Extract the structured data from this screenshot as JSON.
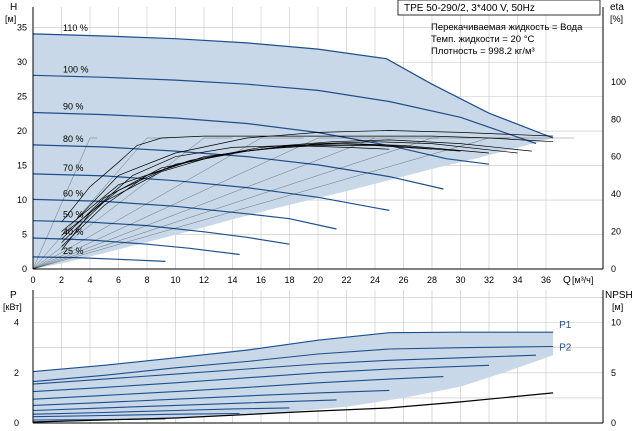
{
  "chart_data": [
    {
      "type": "line",
      "title": "TPE 50-290/2, 3*400 V, 50Hz",
      "info_lines": [
        "Перекачиваемая жидкость = Вода",
        "Темп. жидкости = 20 °C",
        "Плотность = 998.2 кг/м³"
      ],
      "ylabel": "H",
      "yunit": "[м]",
      "y2label": "eta",
      "y2unit": "[%]",
      "xlabel": "Q",
      "xunit": "[м³/ч]",
      "xlim": [
        0,
        40
      ],
      "xticks": [
        0,
        2,
        4,
        6,
        8,
        10,
        12,
        14,
        16,
        18,
        20,
        22,
        24,
        26,
        28,
        30,
        32,
        34,
        36
      ],
      "ylim": [
        0,
        38
      ],
      "yticks": [
        0,
        5,
        10,
        15,
        20,
        25,
        30,
        35
      ],
      "y2lim": [
        0,
        140
      ],
      "y2ticks": [
        0,
        20,
        40,
        60,
        80,
        100
      ],
      "grid": true,
      "envelope": [
        [
          0,
          34.1
        ],
        [
          5,
          33.8
        ],
        [
          10,
          33.4
        ],
        [
          15,
          32.8
        ],
        [
          20,
          31.9
        ],
        [
          24.8,
          30.5
        ],
        [
          28,
          26.8
        ],
        [
          32,
          22.6
        ],
        [
          36.5,
          19.0
        ],
        [
          34,
          17.6
        ],
        [
          31,
          16.0
        ],
        [
          28,
          14.5
        ],
        [
          25,
          12.9
        ],
        [
          22,
          11.3
        ],
        [
          20,
          10.3
        ],
        [
          17,
          8.8
        ],
        [
          14,
          7.2
        ],
        [
          11,
          5.5
        ],
        [
          8,
          3.9
        ],
        [
          5,
          2.3
        ],
        [
          2,
          0.8
        ],
        [
          0,
          0
        ]
      ],
      "speed_curves": [
        {
          "label": "110 %",
          "points": [
            [
              0,
              34.1
            ],
            [
              5,
              33.8
            ],
            [
              10,
              33.4
            ],
            [
              15,
              32.8
            ],
            [
              20,
              31.9
            ],
            [
              24.8,
              30.5
            ],
            [
              28,
              26.8
            ],
            [
              32,
              22.6
            ],
            [
              36.5,
              19.0
            ]
          ]
        },
        {
          "label": "100 %",
          "points": [
            [
              0,
              28.1
            ],
            [
              5,
              27.8
            ],
            [
              10,
              27.4
            ],
            [
              15,
              26.8
            ],
            [
              20,
              25.9
            ],
            [
              25,
              24.3
            ],
            [
              30,
              22.0
            ],
            [
              35.3,
              18.2
            ]
          ]
        },
        {
          "label": "90 %",
          "points": [
            [
              0,
              22.7
            ],
            [
              5,
              22.4
            ],
            [
              10,
              21.9
            ],
            [
              15,
              21.1
            ],
            [
              20,
              19.8
            ],
            [
              25,
              17.9
            ],
            [
              29,
              16.0
            ],
            [
              32,
              15.2
            ]
          ]
        },
        {
          "label": "80 %",
          "points": [
            [
              0,
              18.0
            ],
            [
              5,
              17.7
            ],
            [
              10,
              17.1
            ],
            [
              15,
              16.3
            ],
            [
              20,
              15.1
            ],
            [
              25,
              13.4
            ],
            [
              28.8,
              11.6
            ]
          ]
        },
        {
          "label": "70 %",
          "points": [
            [
              0,
              13.8
            ],
            [
              5,
              13.5
            ],
            [
              10,
              12.8
            ],
            [
              15,
              11.8
            ],
            [
              20,
              10.4
            ],
            [
              25,
              8.5
            ]
          ]
        },
        {
          "label": "60 %",
          "points": [
            [
              0,
              10.1
            ],
            [
              5,
              9.8
            ],
            [
              10,
              9.1
            ],
            [
              15,
              8.0
            ],
            [
              18,
              7.3
            ],
            [
              21.3,
              5.8
            ]
          ]
        },
        {
          "label": "50 %",
          "points": [
            [
              0,
              7.0
            ],
            [
              4,
              6.8
            ],
            [
              8,
              6.3
            ],
            [
              12,
              5.4
            ],
            [
              15,
              4.6
            ],
            [
              18,
              3.6
            ]
          ]
        },
        {
          "label": "40 %",
          "points": [
            [
              0,
              4.5
            ],
            [
              4,
              4.2
            ],
            [
              8,
              3.6
            ],
            [
              11,
              3.0
            ],
            [
              14.5,
              2.1
            ]
          ]
        },
        {
          "label": "25 %",
          "points": [
            [
              0,
              1.75
            ],
            [
              3,
              1.65
            ],
            [
              6,
              1.4
            ],
            [
              9.3,
              1.1
            ]
          ]
        }
      ],
      "efficiency_curves": [
        {
          "points": [
            [
              2,
              10
            ],
            [
              4,
              30
            ],
            [
              7,
              50
            ],
            [
              10,
              60
            ],
            [
              14,
              65
            ],
            [
              18,
              66
            ],
            [
              22,
              65
            ],
            [
              25,
              64
            ]
          ]
        },
        {
          "points": [
            [
              2,
              12
            ],
            [
              5,
              34
            ],
            [
              8,
              50
            ],
            [
              12,
              60
            ],
            [
              16,
              64
            ],
            [
              20,
              66
            ],
            [
              24,
              66
            ],
            [
              28,
              64
            ]
          ]
        },
        {
          "points": [
            [
              2,
              14
            ],
            [
              5,
              36
            ],
            [
              9,
              52
            ],
            [
              13,
              61
            ],
            [
              17,
              65
            ],
            [
              21,
              67
            ],
            [
              25,
              66
            ],
            [
              30,
              63
            ]
          ]
        },
        {
          "points": [
            [
              2,
              16
            ],
            [
              5,
              38
            ],
            [
              9,
              54
            ],
            [
              14,
              62
            ],
            [
              18,
              66
            ],
            [
              22,
              67
            ],
            [
              26,
              66
            ],
            [
              32,
              62
            ]
          ]
        },
        {
          "points": [
            [
              2,
              18
            ],
            [
              6,
              42
            ],
            [
              10,
              56
            ],
            [
              15,
              63
            ],
            [
              20,
              67
            ],
            [
              24,
              68
            ],
            [
              28,
              67
            ],
            [
              34,
              62
            ]
          ]
        },
        {
          "points": [
            [
              2,
              20
            ],
            [
              6,
              45
            ],
            [
              11,
              58
            ],
            [
              16,
              65
            ],
            [
              21,
              68
            ],
            [
              25,
              69
            ],
            [
              30,
              67
            ],
            [
              35,
              63
            ]
          ]
        },
        {
          "points": [
            [
              3,
              26
            ],
            [
              6,
              50
            ],
            [
              10,
              62
            ],
            [
              15,
              70
            ],
            [
              20,
              73
            ],
            [
              25,
              74
            ],
            [
              30,
              73
            ],
            [
              36.5,
              71
            ]
          ]
        },
        {
          "points": [
            [
              2,
              25
            ],
            [
              4,
              44
            ],
            [
              6,
              57
            ],
            [
              7.3,
              66
            ],
            [
              9,
              70
            ],
            [
              12,
              71
            ],
            [
              16,
              71
            ],
            [
              20,
              71
            ],
            [
              24,
              71
            ],
            [
              28,
              71
            ],
            [
              32,
              70
            ],
            [
              36.5,
              68
            ]
          ]
        }
      ]
    },
    {
      "type": "line",
      "ylabel": "P",
      "yunit": "[кВт]",
      "y2label": "NPSH",
      "y2unit": "[м]",
      "xlim": [
        0,
        40
      ],
      "ylim": [
        0,
        5.3
      ],
      "yticks": [
        0,
        2,
        4
      ],
      "y2lim": [
        0,
        13.25
      ],
      "y2ticks": [
        0,
        5,
        10
      ],
      "grid": true,
      "envelope": [
        [
          0,
          2.05
        ],
        [
          10,
          2.6
        ],
        [
          20,
          3.3
        ],
        [
          25,
          3.6
        ],
        [
          36.5,
          3.62
        ],
        [
          36.5,
          2.7
        ],
        [
          33,
          2.0
        ],
        [
          30,
          1.45
        ],
        [
          26,
          1.0
        ],
        [
          22,
          0.65
        ],
        [
          17,
          0.4
        ],
        [
          12,
          0.24
        ],
        [
          7,
          0.15
        ],
        [
          3,
          0.09
        ],
        [
          0,
          0.07
        ]
      ],
      "power_curves": [
        {
          "label": "P1",
          "points": [
            [
              0,
              2.05
            ],
            [
              5,
              2.3
            ],
            [
              10,
              2.6
            ],
            [
              15,
              2.9
            ],
            [
              20,
              3.3
            ],
            [
              25,
              3.6
            ],
            [
              30,
              3.62
            ],
            [
              36.5,
              3.62
            ]
          ]
        },
        {
          "label": "P2",
          "points": [
            [
              0,
              1.65
            ],
            [
              5,
              1.9
            ],
            [
              10,
              2.2
            ],
            [
              15,
              2.45
            ],
            [
              20,
              2.75
            ],
            [
              25,
              2.95
            ],
            [
              30,
              3.0
            ],
            [
              36.5,
              3.05
            ]
          ]
        },
        {
          "points": [
            [
              0,
              1.55
            ],
            [
              5,
              1.75
            ],
            [
              10,
              1.95
            ],
            [
              15,
              2.15
            ],
            [
              20,
              2.35
            ],
            [
              25,
              2.5
            ],
            [
              30,
              2.6
            ],
            [
              35.3,
              2.7
            ]
          ]
        },
        {
          "points": [
            [
              0,
              1.25
            ],
            [
              5,
              1.42
            ],
            [
              10,
              1.6
            ],
            [
              15,
              1.8
            ],
            [
              20,
              2.0
            ],
            [
              25,
              2.15
            ],
            [
              32,
              2.3
            ]
          ]
        },
        {
          "points": [
            [
              0,
              0.95
            ],
            [
              5,
              1.1
            ],
            [
              10,
              1.25
            ],
            [
              15,
              1.42
            ],
            [
              20,
              1.6
            ],
            [
              25,
              1.75
            ],
            [
              28.8,
              1.85
            ]
          ]
        },
        {
          "points": [
            [
              0,
              0.7
            ],
            [
              5,
              0.82
            ],
            [
              10,
              0.95
            ],
            [
              15,
              1.08
            ],
            [
              20,
              1.2
            ],
            [
              25,
              1.3
            ]
          ]
        },
        {
          "points": [
            [
              0,
              0.5
            ],
            [
              5,
              0.6
            ],
            [
              10,
              0.7
            ],
            [
              15,
              0.8
            ],
            [
              21.3,
              0.92
            ]
          ]
        },
        {
          "points": [
            [
              0,
              0.35
            ],
            [
              5,
              0.42
            ],
            [
              10,
              0.5
            ],
            [
              14,
              0.56
            ],
            [
              18,
              0.6
            ]
          ]
        },
        {
          "points": [
            [
              0,
              0.25
            ],
            [
              5,
              0.3
            ],
            [
              10,
              0.35
            ],
            [
              14.5,
              0.38
            ]
          ]
        },
        {
          "points": [
            [
              0,
              0.12
            ],
            [
              5,
              0.14
            ],
            [
              9.3,
              0.16
            ]
          ]
        }
      ],
      "npsh_curve": {
        "points": [
          [
            0,
            0.1
          ],
          [
            10,
            0.5
          ],
          [
            20,
            1.2
          ],
          [
            25,
            1.5
          ],
          [
            30,
            2.1
          ],
          [
            36.5,
            3.0
          ]
        ]
      }
    }
  ]
}
